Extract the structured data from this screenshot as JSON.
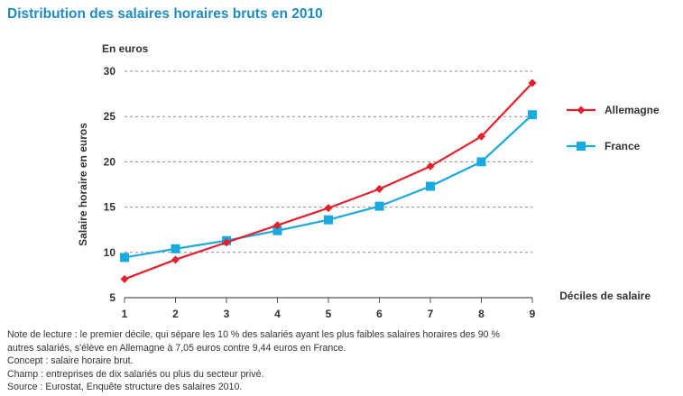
{
  "title": "Distribution des salaires horaires bruts en 2010",
  "chart_data": {
    "type": "line",
    "unit_label": "En euros",
    "ylabel": "Salaire horaire en euros",
    "xlabel": "Déciles de salaire",
    "x": [
      1,
      2,
      3,
      4,
      5,
      6,
      7,
      8,
      9
    ],
    "ylim": [
      5,
      30
    ],
    "yticks": [
      5,
      10,
      15,
      20,
      25,
      30
    ],
    "grid": "horizontal dashed",
    "legend_placement": "right",
    "series": [
      {
        "name": "Allemagne",
        "color": "#e3202b",
        "marker": "diamond",
        "values": [
          7.05,
          9.2,
          11.1,
          13.0,
          14.9,
          17.0,
          19.5,
          22.8,
          28.7
        ]
      },
      {
        "name": "France",
        "color": "#19a9e1",
        "marker": "square",
        "values": [
          9.44,
          10.4,
          11.3,
          12.4,
          13.6,
          15.1,
          17.3,
          20.0,
          25.2
        ]
      }
    ]
  },
  "notes": {
    "lecture": "Note de lecture : le premier décile, qui sépare les 10 % des salariés ayant les plus faibles salaires horaires des 90 %\nautres salariés, s'élève en Allemagne à 7,05 euros contre 9,44 euros en France.",
    "concept": "Concept : salaire horaire brut.",
    "champ": "Champ : entreprises de dix salariés ou plus du secteur privé.",
    "source": "Source : Eurostat, Enquête structure des salaires 2010."
  }
}
